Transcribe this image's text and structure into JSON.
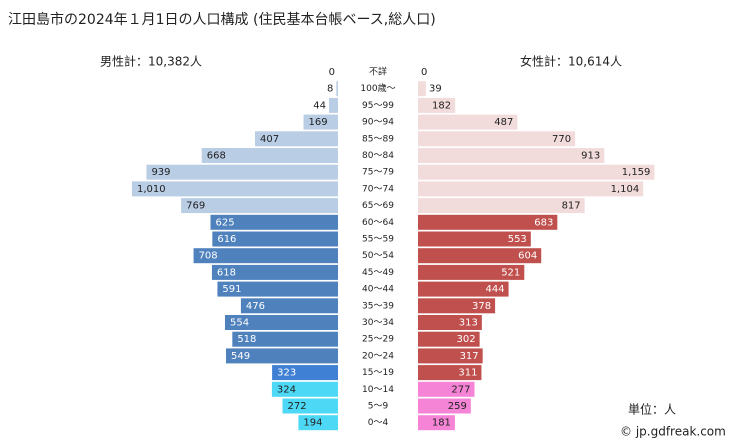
{
  "chart_data": {
    "type": "pyramid",
    "title": "江田島市の2024年１月1日の人口構成 (住民基本台帳ベース,総人口)",
    "unit": "単位：人",
    "credit": "© jp.gdfreak.com",
    "categories": [
      "不詳",
      "100歳～",
      "95～99",
      "90～94",
      "85～89",
      "80～84",
      "75～79",
      "70～74",
      "65～69",
      "60～64",
      "55～59",
      "50～54",
      "45～49",
      "40～44",
      "35～39",
      "30～34",
      "25～29",
      "20～24",
      "15～19",
      "10～14",
      "5～9",
      "0～4"
    ],
    "series": [
      {
        "name": "男性計：10,382人",
        "side": "left",
        "values": [
          0,
          8,
          44,
          169,
          407,
          668,
          939,
          1010,
          769,
          625,
          616,
          708,
          618,
          591,
          476,
          554,
          518,
          549,
          323,
          324,
          272,
          194
        ],
        "value_labels": [
          "0",
          "8",
          "44",
          "169",
          "407",
          "668",
          "939",
          "1,010",
          "769",
          "625",
          "616",
          "708",
          "618",
          "591",
          "476",
          "554",
          "518",
          "549",
          "323",
          "324",
          "272",
          "194"
        ],
        "colors": [
          "#b9cde5",
          "#b9cde5",
          "#b9cde5",
          "#b9cde5",
          "#b9cde5",
          "#b9cde5",
          "#b9cde5",
          "#b9cde5",
          "#b9cde5",
          "#4f81bd",
          "#4f81bd",
          "#4f81bd",
          "#4f81bd",
          "#4f81bd",
          "#4f81bd",
          "#4f81bd",
          "#4f81bd",
          "#4f81bd",
          "#3f7fd4",
          "#4dd9f5",
          "#4dd9f5",
          "#4dd9f5"
        ]
      },
      {
        "name": "女性計：10,614人",
        "side": "right",
        "values": [
          0,
          39,
          182,
          487,
          770,
          913,
          1159,
          1104,
          817,
          683,
          553,
          604,
          521,
          444,
          378,
          313,
          302,
          317,
          311,
          277,
          259,
          181
        ],
        "value_labels": [
          "0",
          "39",
          "182",
          "487",
          "770",
          "913",
          "1,159",
          "1,104",
          "817",
          "683",
          "553",
          "604",
          "521",
          "444",
          "378",
          "313",
          "302",
          "317",
          "311",
          "277",
          "259",
          "181"
        ],
        "colors": [
          "#f2dcdb",
          "#f2dcdb",
          "#f2dcdb",
          "#f2dcdb",
          "#f2dcdb",
          "#f2dcdb",
          "#f2dcdb",
          "#f2dcdb",
          "#f2dcdb",
          "#c0504d",
          "#c0504d",
          "#c0504d",
          "#c0504d",
          "#c0504d",
          "#c0504d",
          "#c0504d",
          "#c0504d",
          "#c0504d",
          "#c0504d",
          "#f584d6",
          "#f584d6",
          "#f584d6"
        ]
      }
    ]
  }
}
